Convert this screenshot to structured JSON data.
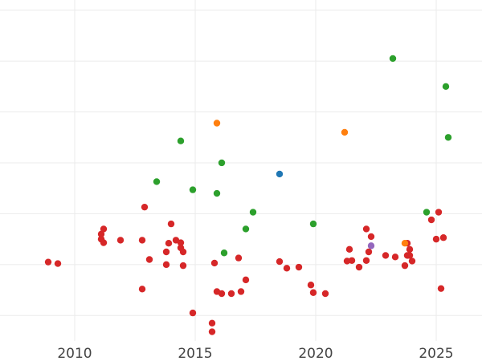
{
  "chart_data": {
    "type": "scatter",
    "title": "",
    "xlabel": "",
    "ylabel": "",
    "xlim": [
      2006.9,
      2026.9
    ],
    "ylim": [
      0,
      6.7
    ],
    "grid": true,
    "legend": "none",
    "x_ticks": [
      {
        "value": 2010,
        "label": "2010"
      },
      {
        "value": 2015,
        "label": "2015"
      },
      {
        "value": 2020,
        "label": "2020"
      },
      {
        "value": 2025,
        "label": "2025"
      }
    ],
    "y_grid": [
      0.5,
      1.5,
      2.5,
      3.5,
      4.5,
      5.5,
      6.5
    ],
    "series": [
      {
        "color": "#d62728",
        "x": [
          2008.9,
          2009.3,
          2011.1,
          2011.1,
          2011.2,
          2011.2,
          2011.9,
          2012.8,
          2012.8,
          2012.9,
          2013.1,
          2013.8,
          2013.8,
          2013.9,
          2014.0,
          2014.2,
          2014.4,
          2014.4,
          2014.5,
          2014.5,
          2014.9,
          2015.7,
          2015.7,
          2015.8,
          2015.9,
          2016.1,
          2016.5,
          2016.8,
          2016.9,
          2017.1,
          2018.5,
          2018.8,
          2019.3,
          2019.8,
          2019.9,
          2020.4,
          2021.3,
          2021.4,
          2021.5,
          2021.8,
          2022.1,
          2022.1,
          2022.2,
          2022.3,
          2022.9,
          2023.3,
          2023.7,
          2023.8,
          2023.8,
          2023.9,
          2023.9,
          2024.0,
          2024.8,
          2025.0,
          2025.1,
          2025.2,
          2025.3
        ],
        "y": [
          1.55,
          1.52,
          2.0,
          2.1,
          2.2,
          1.93,
          1.98,
          1.02,
          1.98,
          2.63,
          1.6,
          1.75,
          1.5,
          1.92,
          2.3,
          1.98,
          1.83,
          1.93,
          1.48,
          1.75,
          0.55,
          0.35,
          0.18,
          1.53,
          0.97,
          0.93,
          0.93,
          1.63,
          0.97,
          1.2,
          1.56,
          1.43,
          1.45,
          1.1,
          0.95,
          0.93,
          1.57,
          1.8,
          1.58,
          1.45,
          1.58,
          2.2,
          1.75,
          2.05,
          1.68,
          1.65,
          1.48,
          1.92,
          1.68,
          1.8,
          1.68,
          1.57,
          2.38,
          2.0,
          2.53,
          1.03,
          2.03
        ]
      },
      {
        "color": "#2ca02c",
        "x": [
          2013.4,
          2014.4,
          2014.9,
          2015.9,
          2016.1,
          2016.2,
          2017.1,
          2017.4,
          2019.9,
          2023.2,
          2024.6,
          2025.4,
          2025.5
        ],
        "y": [
          3.13,
          3.93,
          2.97,
          2.9,
          3.5,
          1.73,
          2.2,
          2.53,
          2.3,
          5.55,
          2.53,
          5.0,
          4.0
        ]
      },
      {
        "color": "#ff7f0e",
        "x": [
          2015.9,
          2021.2,
          2023.7
        ],
        "y": [
          4.28,
          4.1,
          1.92
        ]
      },
      {
        "color": "#1f77b4",
        "x": [
          2018.5
        ],
        "y": [
          3.28
        ]
      },
      {
        "color": "#9467bd",
        "x": [
          2022.3
        ],
        "y": [
          1.87
        ]
      }
    ]
  }
}
